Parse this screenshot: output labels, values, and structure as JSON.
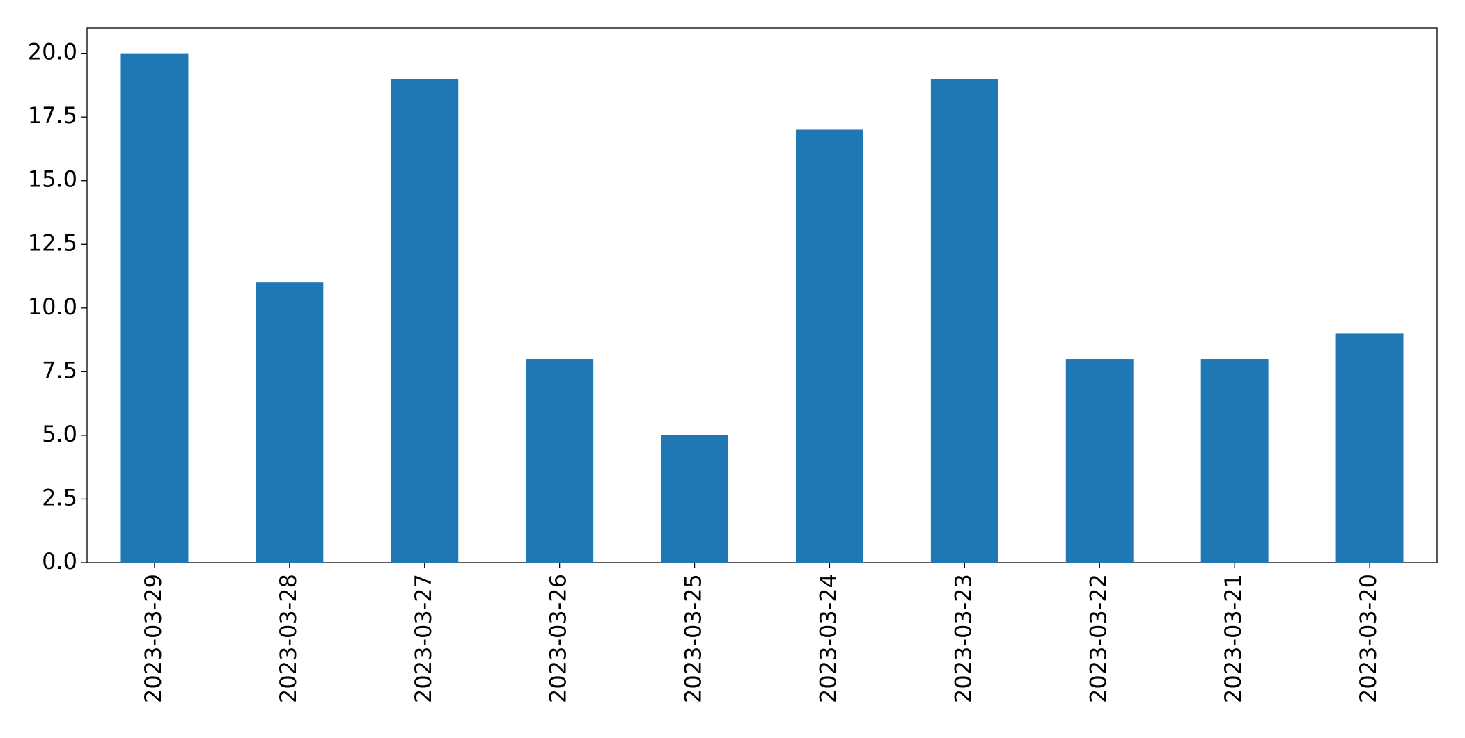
{
  "chart_data": {
    "type": "bar",
    "categories": [
      "2023-03-29",
      "2023-03-28",
      "2023-03-27",
      "2023-03-26",
      "2023-03-25",
      "2023-03-24",
      "2023-03-23",
      "2023-03-22",
      "2023-03-21",
      "2023-03-20"
    ],
    "values": [
      20,
      11,
      19,
      8,
      5,
      17,
      19,
      8,
      8,
      9
    ],
    "color": "#1f77b4",
    "ylim": [
      0,
      21
    ],
    "yticks": [
      {
        "value": 0,
        "label": "0.0"
      },
      {
        "value": 2.5,
        "label": "2.5"
      },
      {
        "value": 5,
        "label": "5.0"
      },
      {
        "value": 7.5,
        "label": "7.5"
      },
      {
        "value": 10,
        "label": "10.0"
      },
      {
        "value": 12.5,
        "label": "12.5"
      },
      {
        "value": 15,
        "label": "15.0"
      },
      {
        "value": 17.5,
        "label": "17.5"
      },
      {
        "value": 20,
        "label": "20.0"
      }
    ],
    "grid": false
  }
}
